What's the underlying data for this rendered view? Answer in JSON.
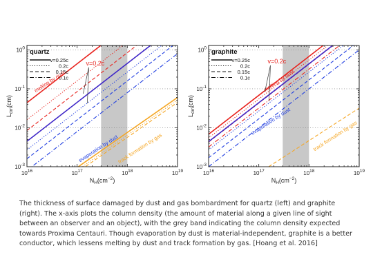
{
  "chart_data": [
    {
      "type": "line",
      "panel_label": "quartz",
      "xlabel": "N_H(cm⁻²)",
      "ylabel": "L_dm(cm)",
      "xscale": "log",
      "yscale": "log",
      "xlim": [
        1e+16,
        1e+19
      ],
      "ylim": [
        0.001,
        1.3
      ],
      "x_ticks": [
        "10^16",
        "10^17",
        "10^18",
        "10^19"
      ],
      "y_ticks": [
        "10^-3",
        "10^-2",
        "10^-1",
        "10^0"
      ],
      "grey_band": [
        3e+17,
        1e+18
      ],
      "legend_placement": "top-left",
      "legend": [
        {
          "label": "v=0.25c",
          "dash": "solid"
        },
        {
          "label": "0.2c",
          "dash": "dotted"
        },
        {
          "label": "0.15c",
          "dash": "dashed"
        },
        {
          "label": "0.1c",
          "dash": "dashdot"
        }
      ],
      "series": [
        {
          "group": "melting",
          "color": "#e8231e",
          "dash": "solid",
          "x": [
            1e+16,
            1e+19
          ],
          "y": [
            0.044,
            44
          ]
        },
        {
          "group": "melting",
          "color": "#e8231e",
          "dash": "dotted",
          "x": [
            1e+16,
            1e+19
          ],
          "y": [
            0.016,
            16
          ]
        },
        {
          "group": "melting",
          "color": "#e8231e",
          "dash": "dashed",
          "x": [
            1e+16,
            1e+19
          ],
          "y": [
            0.0085,
            8.5
          ]
        },
        {
          "group": "evaporation",
          "color": "#3f27c8",
          "dash": "solid",
          "x": [
            1e+16,
            1e+19
          ],
          "y": [
            0.0045,
            4.5
          ]
        },
        {
          "group": "evaporation",
          "color": "#1f3de0",
          "dash": "dotted",
          "x": [
            1e+16,
            1e+19
          ],
          "y": [
            0.0027,
            2.7
          ]
        },
        {
          "group": "evaporation",
          "color": "#1f3de0",
          "dash": "dashed",
          "x": [
            1e+16,
            1e+19
          ],
          "y": [
            0.0016,
            1.6
          ]
        },
        {
          "group": "evaporation",
          "color": "#1f3de0",
          "dash": "dashdot",
          "x": [
            1e+16,
            1e+19
          ],
          "y": [
            0.0008,
            0.8
          ]
        },
        {
          "group": "track",
          "color": "#f5a623",
          "dash": "solid",
          "x": [
            1e+16,
            1e+19
          ],
          "y": [
            0.00012,
            0.06
          ]
        },
        {
          "group": "track",
          "color": "#f5a623",
          "dash": "dotted",
          "x": [
            1e+16,
            1e+19
          ],
          "y": [
            0.0001,
            0.052
          ]
        },
        {
          "group": "track",
          "color": "#f5a623",
          "dash": "dashed",
          "x": [
            1e+16,
            1e+19
          ],
          "y": [
            9e-05,
            0.045
          ]
        }
      ],
      "annotations": [
        {
          "text": "melting by dust",
          "color": "#e8231e",
          "x": 1.5e+16,
          "y": 0.08,
          "angle": 33
        },
        {
          "text": "v=0.2c",
          "color": "#e8231e",
          "x": 1.5e+17,
          "y": 0.4,
          "angle": 0
        },
        {
          "text": "evaporation by dust",
          "color": "#1f3de0",
          "x": 1.15e+17,
          "y": 0.0013,
          "angle": 33
        },
        {
          "text": "track formation by gas",
          "color": "#f5a623",
          "x": 7e+17,
          "y": 0.0012,
          "angle": 33
        }
      ]
    },
    {
      "type": "line",
      "panel_label": "graphite",
      "xlabel": "N_H(cm⁻²)",
      "ylabel": "L_dm(cm)",
      "xscale": "log",
      "yscale": "log",
      "xlim": [
        1e+16,
        1e+19
      ],
      "ylim": [
        0.001,
        1.3
      ],
      "x_ticks": [
        "10^16",
        "10^17",
        "10^18",
        "10^19"
      ],
      "y_ticks": [
        "10^-3",
        "10^-2",
        "10^-1",
        "10^0"
      ],
      "grey_band": [
        3e+17,
        1e+18
      ],
      "legend_placement": "top-left",
      "legend": [
        {
          "label": "v=0.25c",
          "dash": "solid"
        },
        {
          "label": "0.2c",
          "dash": "dotted"
        },
        {
          "label": "0.15c",
          "dash": "dashed"
        },
        {
          "label": "0.1c",
          "dash": "dashdot"
        }
      ],
      "series": [
        {
          "group": "melting",
          "color": "#e8231e",
          "dash": "solid",
          "x": [
            1e+16,
            1e+19
          ],
          "y": [
            0.0068,
            6.8
          ]
        },
        {
          "group": "melting",
          "color": "#e8231e",
          "dash": "dotted",
          "x": [
            1e+16,
            1e+19
          ],
          "y": [
            0.0055,
            5.5
          ]
        },
        {
          "group": "melting",
          "color": "#e8231e",
          "dash": "dashed",
          "x": [
            1e+16,
            1e+19
          ],
          "y": [
            0.0043,
            4.3
          ]
        },
        {
          "group": "melting",
          "color": "#e8231e",
          "dash": "dashdot",
          "x": [
            1e+16,
            1e+19
          ],
          "y": [
            0.0032,
            3.2
          ]
        },
        {
          "group": "evaporation",
          "color": "#3f27c8",
          "dash": "solid",
          "x": [
            1e+16,
            1e+19
          ],
          "y": [
            0.0044,
            4.4
          ]
        },
        {
          "group": "evaporation",
          "color": "#1f3de0",
          "dash": "dotted",
          "x": [
            1e+16,
            1e+19
          ],
          "y": [
            0.0027,
            2.7
          ]
        },
        {
          "group": "evaporation",
          "color": "#1f3de0",
          "dash": "dashed",
          "x": [
            1e+16,
            1e+19
          ],
          "y": [
            0.0017,
            1.7
          ]
        },
        {
          "group": "evaporation",
          "color": "#1f3de0",
          "dash": "dashdot",
          "x": [
            1e+16,
            1e+19
          ],
          "y": [
            0.001,
            1.0
          ]
        },
        {
          "group": "track",
          "color": "#f5a623",
          "dash": "dashed",
          "x": [
            1e+16,
            1e+19
          ],
          "y": [
            0.0001,
            0.032
          ]
        }
      ],
      "annotations": [
        {
          "text": "melting by dust",
          "color": "#e8231e",
          "x": 1.35e+17,
          "y": 0.085,
          "angle": 33
        },
        {
          "text": "v=0.2c",
          "color": "#e8231e",
          "x": 1.5e+17,
          "y": 0.45,
          "angle": 0
        },
        {
          "text": "evaporation by dust",
          "color": "#1f3de0",
          "x": 7.5e+16,
          "y": 0.0065,
          "angle": 33
        },
        {
          "text": "track formation by gas",
          "color": "#f5a623",
          "x": 1.3e+18,
          "y": 0.0025,
          "angle": 33
        }
      ]
    }
  ],
  "caption": "The thickness of surface damaged by dust and gas bombardment for quartz (left) and graphite (right). The x-axis plots the column density (the amount of material along a given line of sight between an observer and an object), with the grey band indicating the column density expected towards Proxima Centauri. Though evaporation by dust is material-independent, graphite is a better conductor, which lessens melting by dust and track formation by gas. [Hoang et al. 2016]",
  "colors": {
    "grey_band": "#c8c8c8",
    "melting": "#e8231e",
    "evaporation": "#1f3de0",
    "track": "#f5a623"
  }
}
